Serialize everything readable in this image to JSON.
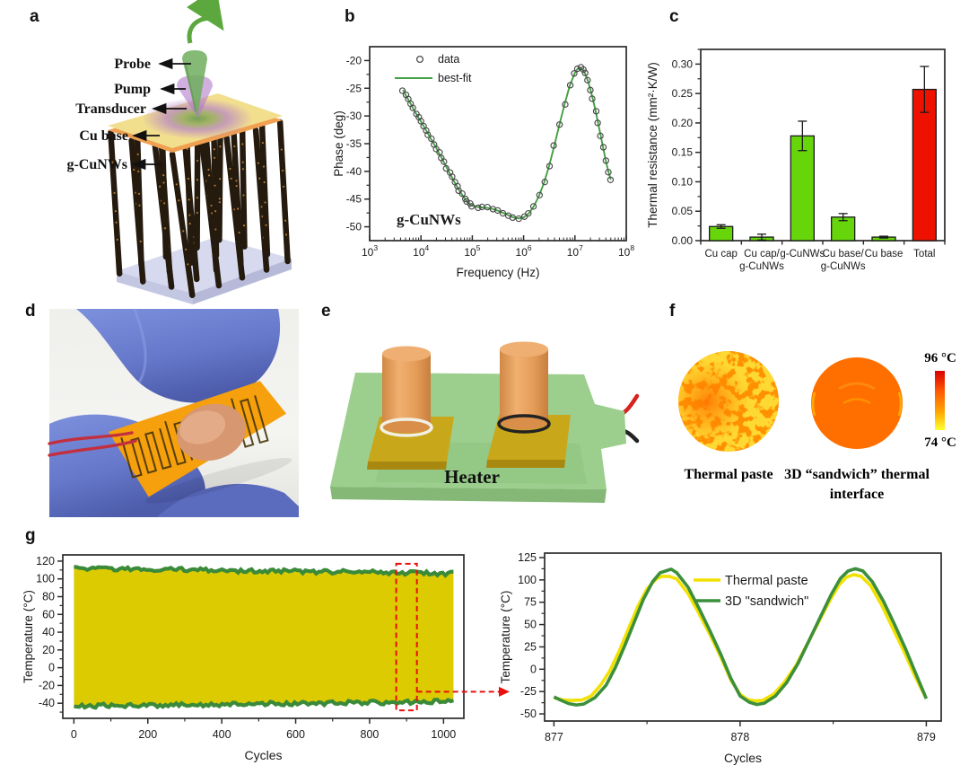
{
  "panel_letters": {
    "a": "a",
    "b": "b",
    "c": "c",
    "d": "d",
    "e": "e",
    "f": "f",
    "g": "g"
  },
  "panel_a": {
    "labels": [
      "Probe",
      "Pump",
      "Transducer",
      "Cu base",
      "g-CuNWs"
    ]
  },
  "panel_e": {
    "label": "Heater"
  },
  "panel_f": {
    "caption_left": "Thermal paste",
    "caption_right_line1": "3D “sandwich” thermal",
    "caption_right_line2": "interface",
    "colorbar_top": "96 °C",
    "colorbar_bottom": "74 °C"
  },
  "chart_data": [
    {
      "id": "phase_fit",
      "type": "scatter",
      "xlabel": "Frequency (Hz)",
      "ylabel": "Phase (deg)",
      "x_scale": "log10",
      "xlim": [
        3,
        8
      ],
      "ylim": [
        -52.5,
        -17.5
      ],
      "yticks": [
        -20,
        -25,
        -30,
        -35,
        -40,
        -45,
        -50
      ],
      "annotation": "g-CuNWs",
      "legend": [
        {
          "label": "data",
          "marker": "circle"
        },
        {
          "label": "best-fit",
          "marker": "line",
          "color": "#44A044"
        }
      ],
      "fit_color": "#44A044",
      "marker_color": "#4a4a4a",
      "points": [
        [
          3.65,
          -25.3
        ],
        [
          3.7,
          -26.2
        ],
        [
          3.75,
          -27
        ],
        [
          3.8,
          -27.8
        ],
        [
          3.85,
          -28.7
        ],
        [
          3.9,
          -29.5
        ],
        [
          3.95,
          -30.3
        ],
        [
          4,
          -31
        ],
        [
          4.05,
          -31.8
        ],
        [
          4.1,
          -32.6
        ],
        [
          4.15,
          -33.4
        ],
        [
          4.2,
          -34.2
        ],
        [
          4.25,
          -35
        ],
        [
          4.3,
          -35.8
        ],
        [
          4.35,
          -36.7
        ],
        [
          4.4,
          -37.5
        ],
        [
          4.45,
          -38.4
        ],
        [
          4.5,
          -39.3
        ],
        [
          4.55,
          -40.2
        ],
        [
          4.6,
          -41
        ],
        [
          4.65,
          -41.9
        ],
        [
          4.7,
          -42.7
        ],
        [
          4.75,
          -43.5
        ],
        [
          4.8,
          -44.2
        ],
        [
          4.85,
          -44.9
        ],
        [
          4.9,
          -45.5
        ],
        [
          4.95,
          -45.9
        ],
        [
          5,
          -46.2
        ],
        [
          5.1,
          -46.4
        ],
        [
          5.2,
          -46.5
        ],
        [
          5.3,
          -46.6
        ],
        [
          5.4,
          -46.8
        ],
        [
          5.5,
          -47.1
        ],
        [
          5.6,
          -47.5
        ],
        [
          5.7,
          -47.9
        ],
        [
          5.8,
          -48.3
        ],
        [
          5.9,
          -48.5
        ],
        [
          6,
          -48.3
        ],
        [
          6.1,
          -47.6
        ],
        [
          6.2,
          -46.3
        ],
        [
          6.3,
          -44.4
        ],
        [
          6.4,
          -42
        ],
        [
          6.5,
          -38.9
        ],
        [
          6.6,
          -35.3
        ],
        [
          6.7,
          -31.5
        ],
        [
          6.8,
          -27.8
        ],
        [
          6.9,
          -24.5
        ],
        [
          7,
          -22.2
        ],
        [
          7.05,
          -21.5
        ],
        [
          7.1,
          -21.3
        ],
        [
          7.15,
          -21.6
        ],
        [
          7.2,
          -22.4
        ],
        [
          7.25,
          -23.6
        ],
        [
          7.3,
          -25.2
        ],
        [
          7.35,
          -27
        ],
        [
          7.4,
          -29
        ],
        [
          7.45,
          -31.2
        ],
        [
          7.5,
          -33.5
        ],
        [
          7.55,
          -35.8
        ],
        [
          7.6,
          -38
        ],
        [
          7.65,
          -40
        ],
        [
          7.7,
          -41.5
        ]
      ]
    },
    {
      "id": "thermal_resistance",
      "type": "bar",
      "ylabel": "Thermal resistance (mm²·K/W)",
      "categories": [
        [
          "Cu cap"
        ],
        [
          "Cu cap/",
          "g-CuNWs"
        ],
        [
          "g-CuNWs"
        ],
        [
          "Cu base/",
          "g-CuNWs"
        ],
        [
          "Cu base"
        ],
        [
          "Total"
        ]
      ],
      "values": [
        0.024,
        0.006,
        0.178,
        0.04,
        0.006,
        0.257
      ],
      "errors": [
        0.003,
        0.005,
        0.025,
        0.006,
        0.0015,
        0.039
      ],
      "bar_colors": [
        "#66D60A",
        "#66D60A",
        "#66D60A",
        "#66D60A",
        "#66D60A",
        "#EE1100"
      ],
      "ylim": [
        0,
        0.325
      ],
      "yticks": [
        0.0,
        0.05,
        0.1,
        0.15,
        0.2,
        0.25,
        0.3
      ]
    },
    {
      "id": "cycling_band",
      "type": "area",
      "xlabel": "Cycles",
      "ylabel": "Temperature (°C)",
      "xlim": [
        -30,
        1055
      ],
      "ylim": [
        -57,
        127
      ],
      "xticks": [
        0,
        200,
        400,
        600,
        800,
        1000
      ],
      "yticks": [
        -40,
        -20,
        0,
        20,
        40,
        60,
        80,
        100,
        120
      ],
      "band": {
        "x_start": 0,
        "x_end": 1030,
        "top_start": 112,
        "top_end": 106,
        "bottom_start": -43,
        "bottom_end": -38,
        "noise_amp": 2.4
      },
      "colors": {
        "fill": "#DCCB00",
        "edge": "#3A8A3A"
      },
      "highlight": {
        "x0": 872,
        "x1": 928,
        "y0": -48,
        "y1": 117,
        "color": "#E8100C"
      }
    },
    {
      "id": "cycling_zoom",
      "type": "line",
      "xlabel": "Cycles",
      "ylabel": "Temperature (°C)",
      "xlim": [
        876.95,
        879.08
      ],
      "ylim": [
        -58,
        130
      ],
      "xticks": [
        877,
        878,
        879
      ],
      "yticks": [
        -50,
        -25,
        0,
        25,
        50,
        75,
        100,
        125
      ],
      "series": [
        {
          "name": "Thermal paste",
          "color": "#F2E100",
          "points": [
            [
              877,
              -32
            ],
            [
              877.05,
              -34.5
            ],
            [
              877.1,
              -35
            ],
            [
              877.15,
              -34.5
            ],
            [
              877.2,
              -30
            ],
            [
              877.25,
              -18
            ],
            [
              877.3,
              -2
            ],
            [
              877.35,
              20
            ],
            [
              877.4,
              45
            ],
            [
              877.45,
              70
            ],
            [
              877.5,
              90
            ],
            [
              877.55,
              101
            ],
            [
              877.58,
              104
            ],
            [
              877.62,
              104
            ],
            [
              877.66,
              101
            ],
            [
              877.72,
              85
            ],
            [
              877.78,
              62
            ],
            [
              877.84,
              38
            ],
            [
              877.9,
              12
            ],
            [
              877.95,
              -12
            ],
            [
              878,
              -28
            ],
            [
              878.04,
              -34
            ],
            [
              878.08,
              -35.5
            ],
            [
              878.12,
              -35
            ],
            [
              878.18,
              -28
            ],
            [
              878.24,
              -14
            ],
            [
              878.3,
              4
            ],
            [
              878.36,
              28
            ],
            [
              878.42,
              52
            ],
            [
              878.48,
              76
            ],
            [
              878.53,
              94
            ],
            [
              878.57,
              103
            ],
            [
              878.61,
              106
            ],
            [
              878.65,
              104
            ],
            [
              878.7,
              94
            ],
            [
              878.76,
              72
            ],
            [
              878.82,
              46
            ],
            [
              878.88,
              20
            ],
            [
              878.94,
              -8
            ],
            [
              879,
              -33
            ]
          ]
        },
        {
          "name": "3D \"sandwich\"",
          "color": "#3C8F3C",
          "points": [
            [
              877,
              -31
            ],
            [
              877.04,
              -35
            ],
            [
              877.08,
              -38.5
            ],
            [
              877.12,
              -40
            ],
            [
              877.16,
              -39
            ],
            [
              877.22,
              -32
            ],
            [
              877.28,
              -18
            ],
            [
              877.33,
              2
            ],
            [
              877.38,
              26
            ],
            [
              877.43,
              52
            ],
            [
              877.48,
              78
            ],
            [
              877.53,
              98
            ],
            [
              877.57,
              108
            ],
            [
              877.6,
              110
            ],
            [
              877.63,
              112
            ],
            [
              877.66,
              108
            ],
            [
              877.72,
              92
            ],
            [
              877.78,
              68
            ],
            [
              877.84,
              42
            ],
            [
              877.9,
              15
            ],
            [
              877.95,
              -10
            ],
            [
              878,
              -30
            ],
            [
              878.05,
              -37
            ],
            [
              878.09,
              -39.5
            ],
            [
              878.13,
              -38
            ],
            [
              878.19,
              -30
            ],
            [
              878.25,
              -15
            ],
            [
              878.31,
              6
            ],
            [
              878.37,
              32
            ],
            [
              878.43,
              58
            ],
            [
              878.49,
              84
            ],
            [
              878.54,
              102
            ],
            [
              878.58,
              110
            ],
            [
              878.62,
              112.5
            ],
            [
              878.66,
              110
            ],
            [
              878.71,
              98
            ],
            [
              878.77,
              76
            ],
            [
              878.83,
              50
            ],
            [
              878.89,
              22
            ],
            [
              878.95,
              -8
            ],
            [
              879,
              -33
            ]
          ]
        }
      ],
      "legend_position": "upper-middle"
    }
  ]
}
